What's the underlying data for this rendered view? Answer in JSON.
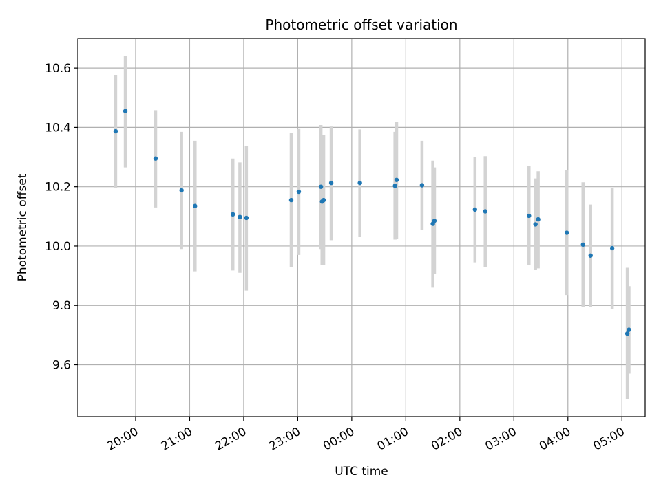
{
  "chart_data": {
    "type": "scatter",
    "title": "Photometric offset variation",
    "xlabel": "UTC time",
    "ylabel": "Photometric offset",
    "grid": true,
    "x_unit": "UTC time (hours after 00:00 of first night; values above 24 wrap to next day)",
    "xlim": [
      18.93,
      29.43
    ],
    "ylim": [
      9.425,
      10.7
    ],
    "x_ticks": [
      {
        "value": 20,
        "label": "20:00"
      },
      {
        "value": 21,
        "label": "21:00"
      },
      {
        "value": 22,
        "label": "22:00"
      },
      {
        "value": 23,
        "label": "23:00"
      },
      {
        "value": 24,
        "label": "00:00"
      },
      {
        "value": 25,
        "label": "01:00"
      },
      {
        "value": 26,
        "label": "02:00"
      },
      {
        "value": 27,
        "label": "03:00"
      },
      {
        "value": 28,
        "label": "04:00"
      },
      {
        "value": 29,
        "label": "05:00"
      }
    ],
    "y_ticks": [
      {
        "value": 9.6,
        "label": "9.6"
      },
      {
        "value": 9.8,
        "label": "9.8"
      },
      {
        "value": 10.0,
        "label": "10.0"
      },
      {
        "value": 10.2,
        "label": "10.2"
      },
      {
        "value": 10.4,
        "label": "10.4"
      },
      {
        "value": 10.6,
        "label": "10.6"
      }
    ],
    "marker_color": "#1f77b4",
    "errorbar_color": "#d3d3d3",
    "points": [
      {
        "x": 19.63,
        "y": 10.387,
        "lo": 10.197,
        "hi": 10.577
      },
      {
        "x": 19.81,
        "y": 10.455,
        "lo": 10.265,
        "hi": 10.64
      },
      {
        "x": 20.37,
        "y": 10.295,
        "lo": 10.13,
        "hi": 10.458
      },
      {
        "x": 20.85,
        "y": 10.188,
        "lo": 9.99,
        "hi": 10.385
      },
      {
        "x": 21.1,
        "y": 10.135,
        "lo": 9.915,
        "hi": 10.355
      },
      {
        "x": 21.8,
        "y": 10.107,
        "lo": 9.918,
        "hi": 10.295
      },
      {
        "x": 21.93,
        "y": 10.098,
        "lo": 9.91,
        "hi": 10.282
      },
      {
        "x": 22.05,
        "y": 10.095,
        "lo": 9.85,
        "hi": 10.338
      },
      {
        "x": 22.88,
        "y": 10.155,
        "lo": 9.928,
        "hi": 10.38
      },
      {
        "x": 23.02,
        "y": 10.183,
        "lo": 9.97,
        "hi": 10.397
      },
      {
        "x": 23.43,
        "y": 10.2,
        "lo": 9.99,
        "hi": 10.408
      },
      {
        "x": 23.45,
        "y": 10.15,
        "lo": 9.935,
        "hi": 10.37
      },
      {
        "x": 23.48,
        "y": 10.155,
        "lo": 9.935,
        "hi": 10.375
      },
      {
        "x": 23.62,
        "y": 10.213,
        "lo": 10.02,
        "hi": 10.403
      },
      {
        "x": 24.15,
        "y": 10.213,
        "lo": 10.03,
        "hi": 10.393
      },
      {
        "x": 24.8,
        "y": 10.203,
        "lo": 10.022,
        "hi": 10.385
      },
      {
        "x": 24.83,
        "y": 10.223,
        "lo": 10.025,
        "hi": 10.418
      },
      {
        "x": 25.3,
        "y": 10.205,
        "lo": 10.055,
        "hi": 10.355
      },
      {
        "x": 25.5,
        "y": 10.075,
        "lo": 9.86,
        "hi": 10.288
      },
      {
        "x": 25.53,
        "y": 10.085,
        "lo": 9.905,
        "hi": 10.265
      },
      {
        "x": 26.28,
        "y": 10.123,
        "lo": 9.945,
        "hi": 10.3
      },
      {
        "x": 26.47,
        "y": 10.117,
        "lo": 9.928,
        "hi": 10.303
      },
      {
        "x": 27.28,
        "y": 10.102,
        "lo": 9.935,
        "hi": 10.27
      },
      {
        "x": 27.4,
        "y": 10.073,
        "lo": 9.92,
        "hi": 10.228
      },
      {
        "x": 27.45,
        "y": 10.09,
        "lo": 9.925,
        "hi": 10.252
      },
      {
        "x": 27.98,
        "y": 10.045,
        "lo": 9.835,
        "hi": 10.255
      },
      {
        "x": 28.28,
        "y": 10.005,
        "lo": 9.795,
        "hi": 10.215
      },
      {
        "x": 28.42,
        "y": 9.968,
        "lo": 9.795,
        "hi": 10.14
      },
      {
        "x": 28.82,
        "y": 9.993,
        "lo": 9.788,
        "hi": 10.197
      },
      {
        "x": 29.1,
        "y": 9.705,
        "lo": 9.485,
        "hi": 9.927
      },
      {
        "x": 29.13,
        "y": 9.718,
        "lo": 9.57,
        "hi": 9.865
      }
    ]
  }
}
